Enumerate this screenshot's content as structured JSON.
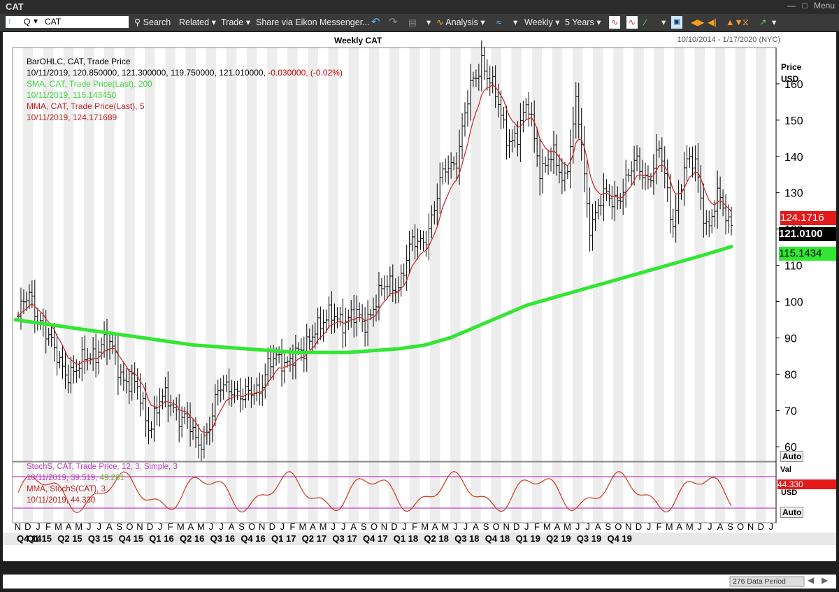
{
  "window": {
    "title": "CAT",
    "menu_label": "Menu"
  },
  "toolbar": {
    "symbol_value": "CAT",
    "symbol_prefix": "Q",
    "search_label": "Search",
    "related_label": "Related",
    "trade_label": "Trade",
    "share_label": "Share via Eikon Messenger...",
    "analysis_label": "Analysis",
    "interval_label": "Weekly",
    "range_label": "5 Years"
  },
  "chart": {
    "title": "Weekly CAT",
    "date_range": "10/10/2014 - 1/17/2020 (NYC)",
    "price_axis_title": "Price",
    "price_axis_unit": "USD",
    "auto_label": "Auto",
    "stoch_auto_label": "Auto",
    "stoch_unit": "USD",
    "stoch_axis_title": "Val",
    "data_period": "276 Data Period",
    "price_ticks": [
      "60",
      "70",
      "80",
      "90",
      "100",
      "110",
      "120",
      "130",
      "140",
      "150",
      "160"
    ],
    "badges": {
      "mma": "124.1716",
      "last": "121.0100",
      "sma": "115.1434",
      "stoch_mma": "44.330"
    }
  },
  "legend": {
    "line1": "BarOHLC, CAT, Trade Price",
    "line2a": "10/11/2019, 120.850000, 121.300000, 119.750000, 121.010000, ",
    "line2b": "-0.030000, (-0.02%)",
    "line3": "SMA, CAT, Trade Price(Last),  200",
    "line4": "10/11/2019, 115.143450",
    "line5": "MMA, CAT, Trade Price(Last),  5",
    "line6": "10/11/2019, 124.171689"
  },
  "stoch_legend": {
    "line1": "StochS, CAT, Trade Price,  12, 3, Simple, 3",
    "line2a": "10/11/2019, 39.519, ",
    "line2b": "49.281",
    "line3": "MMA, StochS(CAT),  3",
    "line4": "10/11/2019, 44.330"
  },
  "x_axis": {
    "months": [
      "N",
      "D",
      "J",
      "F",
      "M",
      "A",
      "M",
      "J",
      "J",
      "A",
      "S",
      "O",
      "N",
      "D",
      "J",
      "F",
      "M",
      "A",
      "M",
      "J",
      "J",
      "A",
      "S",
      "O",
      "N",
      "D",
      "J",
      "F",
      "M",
      "A",
      "M",
      "J",
      "J",
      "A",
      "S",
      "O",
      "N",
      "D",
      "J",
      "F",
      "M",
      "A",
      "M",
      "J",
      "J",
      "A",
      "S",
      "O",
      "N",
      "D",
      "J",
      "F",
      "M",
      "A",
      "M",
      "J",
      "J",
      "A",
      "S",
      "O",
      "N",
      "D",
      "J",
      "F",
      "M",
      "A",
      "M",
      "J",
      "J",
      "A",
      "S",
      "O",
      "N",
      "D",
      "J"
    ],
    "quarters": [
      "Q4 14",
      "Q1 15",
      "Q2 15",
      "Q3 15",
      "Q4 15",
      "Q1 16",
      "Q2 16",
      "Q3 16",
      "Q4 16",
      "Q1 17",
      "Q2 17",
      "Q3 17",
      "Q4 17",
      "Q1 18",
      "Q2 18",
      "Q3 18",
      "Q4 18",
      "Q1 19",
      "Q2 19",
      "Q3 19",
      "Q4 19"
    ]
  },
  "colors": {
    "sma": "#33e633",
    "mma": "#cc2222",
    "bars": "#000000",
    "stoch": "#cc3a1a",
    "stoch_levels": "#c040c0",
    "background": "#ffffff",
    "band": "#ededed"
  },
  "chart_data": {
    "type": "line",
    "interval": "weekly",
    "date_range": "10/10/2014 - 1/17/2020",
    "ylim": [
      56,
      170
    ],
    "price_series": [
      {
        "date": "2014-10",
        "close": 96
      },
      {
        "date": "2014-11",
        "close": 101
      },
      {
        "date": "2014-12",
        "close": 95
      },
      {
        "date": "2015-01",
        "close": 85
      },
      {
        "date": "2015-02",
        "close": 82
      },
      {
        "date": "2015-03",
        "close": 80
      },
      {
        "date": "2015-04",
        "close": 86
      },
      {
        "date": "2015-05",
        "close": 88
      },
      {
        "date": "2015-06",
        "close": 86
      },
      {
        "date": "2015-07",
        "close": 79
      },
      {
        "date": "2015-08",
        "close": 75
      },
      {
        "date": "2015-09",
        "close": 67
      },
      {
        "date": "2015-10",
        "close": 72
      },
      {
        "date": "2015-11",
        "close": 72
      },
      {
        "date": "2015-12",
        "close": 68
      },
      {
        "date": "2016-01",
        "close": 60
      },
      {
        "date": "2016-02",
        "close": 66
      },
      {
        "date": "2016-03",
        "close": 75
      },
      {
        "date": "2016-04",
        "close": 78
      },
      {
        "date": "2016-05",
        "close": 72
      },
      {
        "date": "2016-06",
        "close": 76
      },
      {
        "date": "2016-07",
        "close": 82
      },
      {
        "date": "2016-08",
        "close": 83
      },
      {
        "date": "2016-09",
        "close": 86
      },
      {
        "date": "2016-10",
        "close": 84
      },
      {
        "date": "2016-11",
        "close": 95
      },
      {
        "date": "2016-12",
        "close": 94
      },
      {
        "date": "2017-01",
        "close": 96
      },
      {
        "date": "2017-02",
        "close": 96
      },
      {
        "date": "2017-03",
        "close": 93
      },
      {
        "date": "2017-04",
        "close": 101
      },
      {
        "date": "2017-05",
        "close": 103
      },
      {
        "date": "2017-06",
        "close": 106
      },
      {
        "date": "2017-07",
        "close": 114
      },
      {
        "date": "2017-08",
        "close": 117
      },
      {
        "date": "2017-09",
        "close": 125
      },
      {
        "date": "2017-10",
        "close": 137
      },
      {
        "date": "2017-11",
        "close": 141
      },
      {
        "date": "2017-12",
        "close": 157
      },
      {
        "date": "2018-01",
        "close": 168
      },
      {
        "date": "2018-02",
        "close": 157
      },
      {
        "date": "2018-03",
        "close": 147
      },
      {
        "date": "2018-04",
        "close": 145
      },
      {
        "date": "2018-05",
        "close": 154
      },
      {
        "date": "2018-06",
        "close": 136
      },
      {
        "date": "2018-07",
        "close": 139
      },
      {
        "date": "2018-08",
        "close": 135
      },
      {
        "date": "2018-09",
        "close": 154
      },
      {
        "date": "2018-10",
        "close": 122
      },
      {
        "date": "2018-11",
        "close": 128
      },
      {
        "date": "2018-12",
        "close": 127
      },
      {
        "date": "2019-01",
        "close": 133
      },
      {
        "date": "2019-02",
        "close": 137
      },
      {
        "date": "2019-03",
        "close": 135
      },
      {
        "date": "2019-04",
        "close": 141
      },
      {
        "date": "2019-05",
        "close": 122
      },
      {
        "date": "2019-06",
        "close": 136
      },
      {
        "date": "2019-07",
        "close": 138
      },
      {
        "date": "2019-08",
        "close": 120
      },
      {
        "date": "2019-09",
        "close": 128
      },
      {
        "date": "2019-10",
        "close": 121.01
      }
    ],
    "series": [
      {
        "name": "SMA, CAT, Trade Price(Last),  200",
        "values": [
          95,
          94,
          93,
          92,
          91,
          90,
          89,
          88,
          87.5,
          87,
          86.5,
          86,
          86,
          86,
          86.5,
          87,
          88,
          90,
          93,
          96,
          99,
          101,
          103,
          105,
          107,
          109,
          111,
          113,
          115.14
        ]
      },
      {
        "name": "MMA, CAT, Trade Price(Last),  5",
        "last": 124.171689
      },
      {
        "name": "StochS, CAT, Trade Price,  12, 3, Simple, 3",
        "last": 39.519,
        "signal": 49.281
      },
      {
        "name": "MMA, StochS(CAT),  3",
        "last": 44.33
      }
    ],
    "last_bar": {
      "date": "10/11/2019",
      "open": 120.85,
      "high": 121.3,
      "low": 119.75,
      "close": 121.01,
      "change": -0.03,
      "change_pct": -0.02
    },
    "xlabel": "",
    "ylabel": "Price USD"
  }
}
